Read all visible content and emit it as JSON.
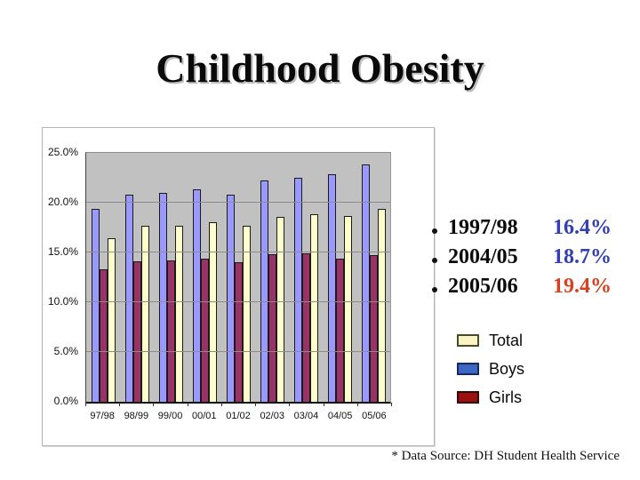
{
  "slide": {
    "title": "Childhood Obesity",
    "footnote": "* Data Source: DH Student Health Service"
  },
  "bullets": [
    {
      "year": "1997/98",
      "value": "16.4%",
      "color": "#3340b3"
    },
    {
      "year": "2004/05",
      "value": "18.7%",
      "color": "#3340b3"
    },
    {
      "year": "2005/06",
      "value": "19.4%",
      "color": "#d6411f"
    }
  ],
  "legend": [
    {
      "label": "Total",
      "swatch": "#fbf4c5",
      "border": "#4a4a2a"
    },
    {
      "label": "Boys",
      "swatch": "#3c68c4",
      "border": "#16295d"
    },
    {
      "label": "Girls",
      "swatch": "#991111",
      "border": "#350606"
    }
  ],
  "chart_data": {
    "type": "bar",
    "title": "",
    "xlabel": "",
    "ylabel": "",
    "categories": [
      "97/98",
      "98/99",
      "99/00",
      "00/01",
      "01/02",
      "02/03",
      "03/04",
      "04/05",
      "05/06"
    ],
    "series": [
      {
        "name": "Boys",
        "color": "#9999ff",
        "values": [
          19.4,
          20.8,
          21.0,
          21.3,
          20.8,
          22.2,
          22.5,
          22.9,
          23.8
        ]
      },
      {
        "name": "Girls",
        "color": "#993366",
        "values": [
          13.3,
          14.1,
          14.2,
          14.4,
          14.0,
          14.8,
          14.9,
          14.4,
          14.7
        ]
      },
      {
        "name": "Total",
        "color": "#ffffcc",
        "values": [
          16.4,
          17.7,
          17.7,
          18.0,
          17.7,
          18.6,
          18.8,
          18.7,
          19.4
        ]
      }
    ],
    "ylim": [
      0,
      25
    ],
    "yticks": [
      "25.0%",
      "20.0%",
      "15.0%",
      "10.0%",
      "5.0%",
      "0.0%"
    ],
    "legend_labels": [
      "Total",
      "Boys",
      "Girls"
    ],
    "legend_position": "right-outside",
    "grid": true,
    "plot_background": "#c1c1c1",
    "gridline_color": "#8c8c8c"
  }
}
